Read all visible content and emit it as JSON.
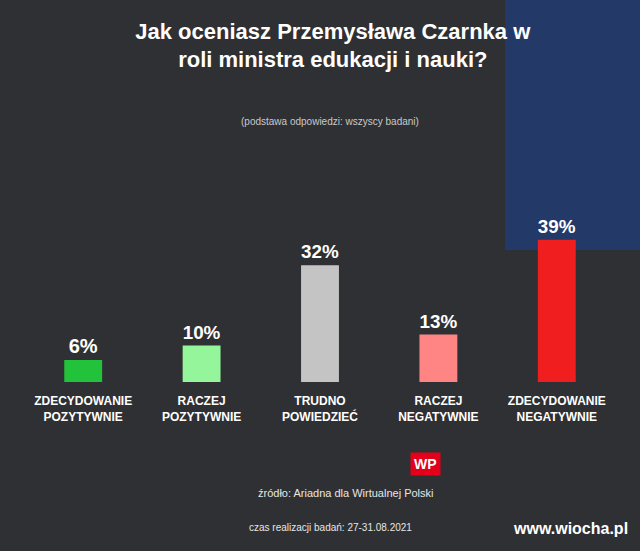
{
  "chart_data": {
    "type": "bar",
    "title": "Jak oceniasz Przemysława Czarnka w roli ministra edukacji i nauki?",
    "subtitle": "(podstawa odpowiedzi: wszyscy badani)",
    "categories": [
      "ZDECYDOWANIE POZYTYWNIE",
      "RACZEJ POZYTYWNIE",
      "TRUDNO POWIEDZIEĆ",
      "RACZEJ NEGATYWNIE",
      "ZDECYDOWANIE NEGATYWNIE"
    ],
    "values": [
      6,
      10,
      32,
      13,
      39
    ],
    "value_labels": [
      "6%",
      "10%",
      "32%",
      "13%",
      "39%"
    ],
    "colors": [
      "#22c23a",
      "#94f59a",
      "#c4c4c4",
      "#ff8585",
      "#f01e1e"
    ],
    "ylim": [
      0,
      40
    ],
    "grid": false,
    "data_labels": true,
    "tick_labels": "x",
    "annotations": [
      "źródło: Ariadna dla Wirtualnej Polski",
      "czas realizacji badań: 27-31.08.2021",
      "WP",
      "www.wiocha.pl"
    ]
  }
}
